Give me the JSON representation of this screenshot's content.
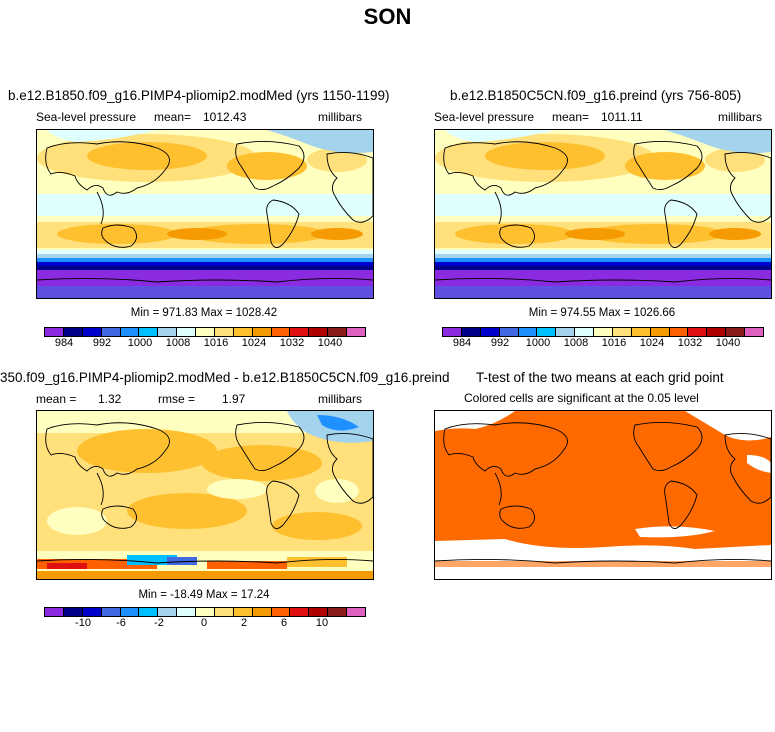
{
  "page": {
    "title": "SON"
  },
  "chart_data": [
    {
      "type": "heatmap",
      "title": "b.e12.B1850.f09_g16.PIMP4-pliomip2.modMed (yrs 1150-1199)",
      "variable": "Sea-level pressure",
      "mean_label": "mean=",
      "mean": "1012.43",
      "units": "millibars",
      "min_max": "Min = 971.83 Max = 1028.42",
      "colorbar_ticks": [
        "984",
        "992",
        "1000",
        "1008",
        "1016",
        "1024",
        "1032",
        "1040"
      ],
      "colorbar_colors": [
        "#8a2be2",
        "#00008b",
        "#0000cd",
        "#4169e1",
        "#1e90ff",
        "#00bfff",
        "#a4d3ee",
        "#e0ffff",
        "#ffffc0",
        "#ffe07a",
        "#ffc030",
        "#f59a00",
        "#ff6000",
        "#e01010",
        "#b00000",
        "#8b1a1a",
        "#e060c0"
      ]
    },
    {
      "type": "heatmap",
      "title": "b.e12.B1850C5CN.f09_g16.preind (yrs 756-805)",
      "variable": "Sea-level pressure",
      "mean_label": "mean=",
      "mean": "1011.11",
      "units": "millibars",
      "min_max": "Min = 974.55 Max = 1026.66",
      "colorbar_ticks": [
        "984",
        "992",
        "1000",
        "1008",
        "1016",
        "1024",
        "1032",
        "1040"
      ]
    },
    {
      "type": "heatmap",
      "title": "350.f09_g16.PIMP4-pliomip2.modMed - b.e12.B1850C5CN.f09_g16.preind",
      "mean_label": "mean =",
      "mean": "1.32",
      "rmse_label": "rmse =",
      "rmse": "1.97",
      "units": "millibars",
      "min_max": "Min = -18.49 Max =  17.24",
      "colorbar_ticks": [
        "-10",
        "-6",
        "-2",
        "0",
        "2",
        "6",
        "10"
      ]
    },
    {
      "type": "heatmap",
      "title": "T-test of the two means at each grid point",
      "subtitle": "Colored cells are significant at the 0.05 level",
      "significant_color": "#ff6a00"
    }
  ]
}
